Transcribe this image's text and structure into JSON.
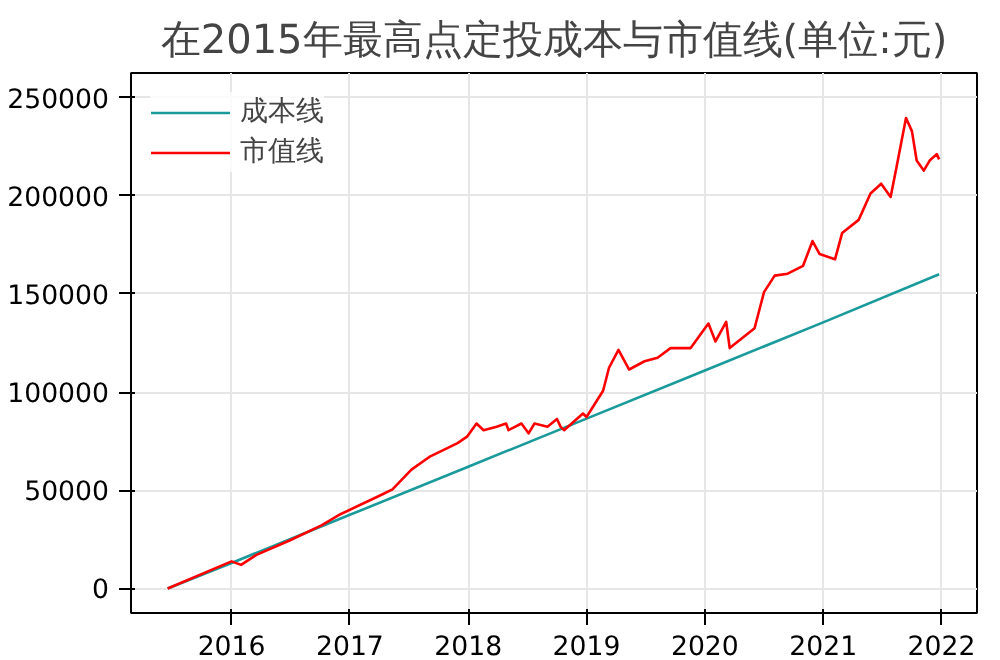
{
  "chart_data": {
    "type": "line",
    "title": "在2015年最高点定投成本与市值线(单位:元)",
    "xlim": [
      2015.15,
      2022.3
    ],
    "xticks": [
      2016,
      2017,
      2018,
      2019,
      2020,
      2021,
      2022
    ],
    "ylim": [
      -12500,
      262500
    ],
    "yticks": [
      0,
      50000,
      100000,
      150000,
      200000,
      250000
    ],
    "grid": true,
    "legend": "top left",
    "series": [
      {
        "name": "成本线",
        "color": "#1a9a9a",
        "x": [
          2015.46,
          2016.0,
          2017.0,
          2018.0,
          2019.0,
          2020.0,
          2021.0,
          2021.98
        ],
        "values": [
          0,
          13000,
          37500,
          62000,
          86500,
          111000,
          135500,
          160000
        ]
      },
      {
        "name": "市值线",
        "color": "#ff0000",
        "x": [
          2015.46,
          2016.0,
          2016.08,
          2016.21,
          2016.49,
          2016.76,
          2016.92,
          2017.25,
          2017.36,
          2017.52,
          2017.68,
          2017.91,
          2017.99,
          2018.07,
          2018.13,
          2018.24,
          2018.32,
          2018.34,
          2018.45,
          2018.51,
          2018.56,
          2018.67,
          2018.75,
          2018.78,
          2018.81,
          2018.97,
          2019.0,
          2019.14,
          2019.19,
          2019.27,
          2019.36,
          2019.49,
          2019.6,
          2019.71,
          2019.88,
          2020.03,
          2020.09,
          2020.18,
          2020.21,
          2020.42,
          2020.5,
          2020.59,
          2020.7,
          2020.83,
          2020.91,
          2020.97,
          2021.1,
          2021.16,
          2021.3,
          2021.4,
          2021.49,
          2021.57,
          2021.62,
          2021.7,
          2021.75,
          2021.79,
          2021.85,
          2021.9,
          2021.96,
          2021.98
        ],
        "values": [
          0,
          13800,
          12000,
          17100,
          24400,
          32100,
          37800,
          47200,
          50500,
          60500,
          67300,
          74000,
          77300,
          84000,
          80600,
          82400,
          84000,
          80600,
          84000,
          79000,
          84000,
          82400,
          86300,
          82400,
          80600,
          89100,
          87300,
          100700,
          112400,
          121500,
          111500,
          115700,
          117500,
          122400,
          122400,
          134900,
          125800,
          135800,
          122400,
          132500,
          150900,
          159300,
          160300,
          164300,
          176900,
          170300,
          167600,
          181000,
          187700,
          201100,
          206100,
          199400,
          214600,
          239600,
          232900,
          217900,
          212800,
          217900,
          221200,
          218500
        ]
      }
    ]
  }
}
